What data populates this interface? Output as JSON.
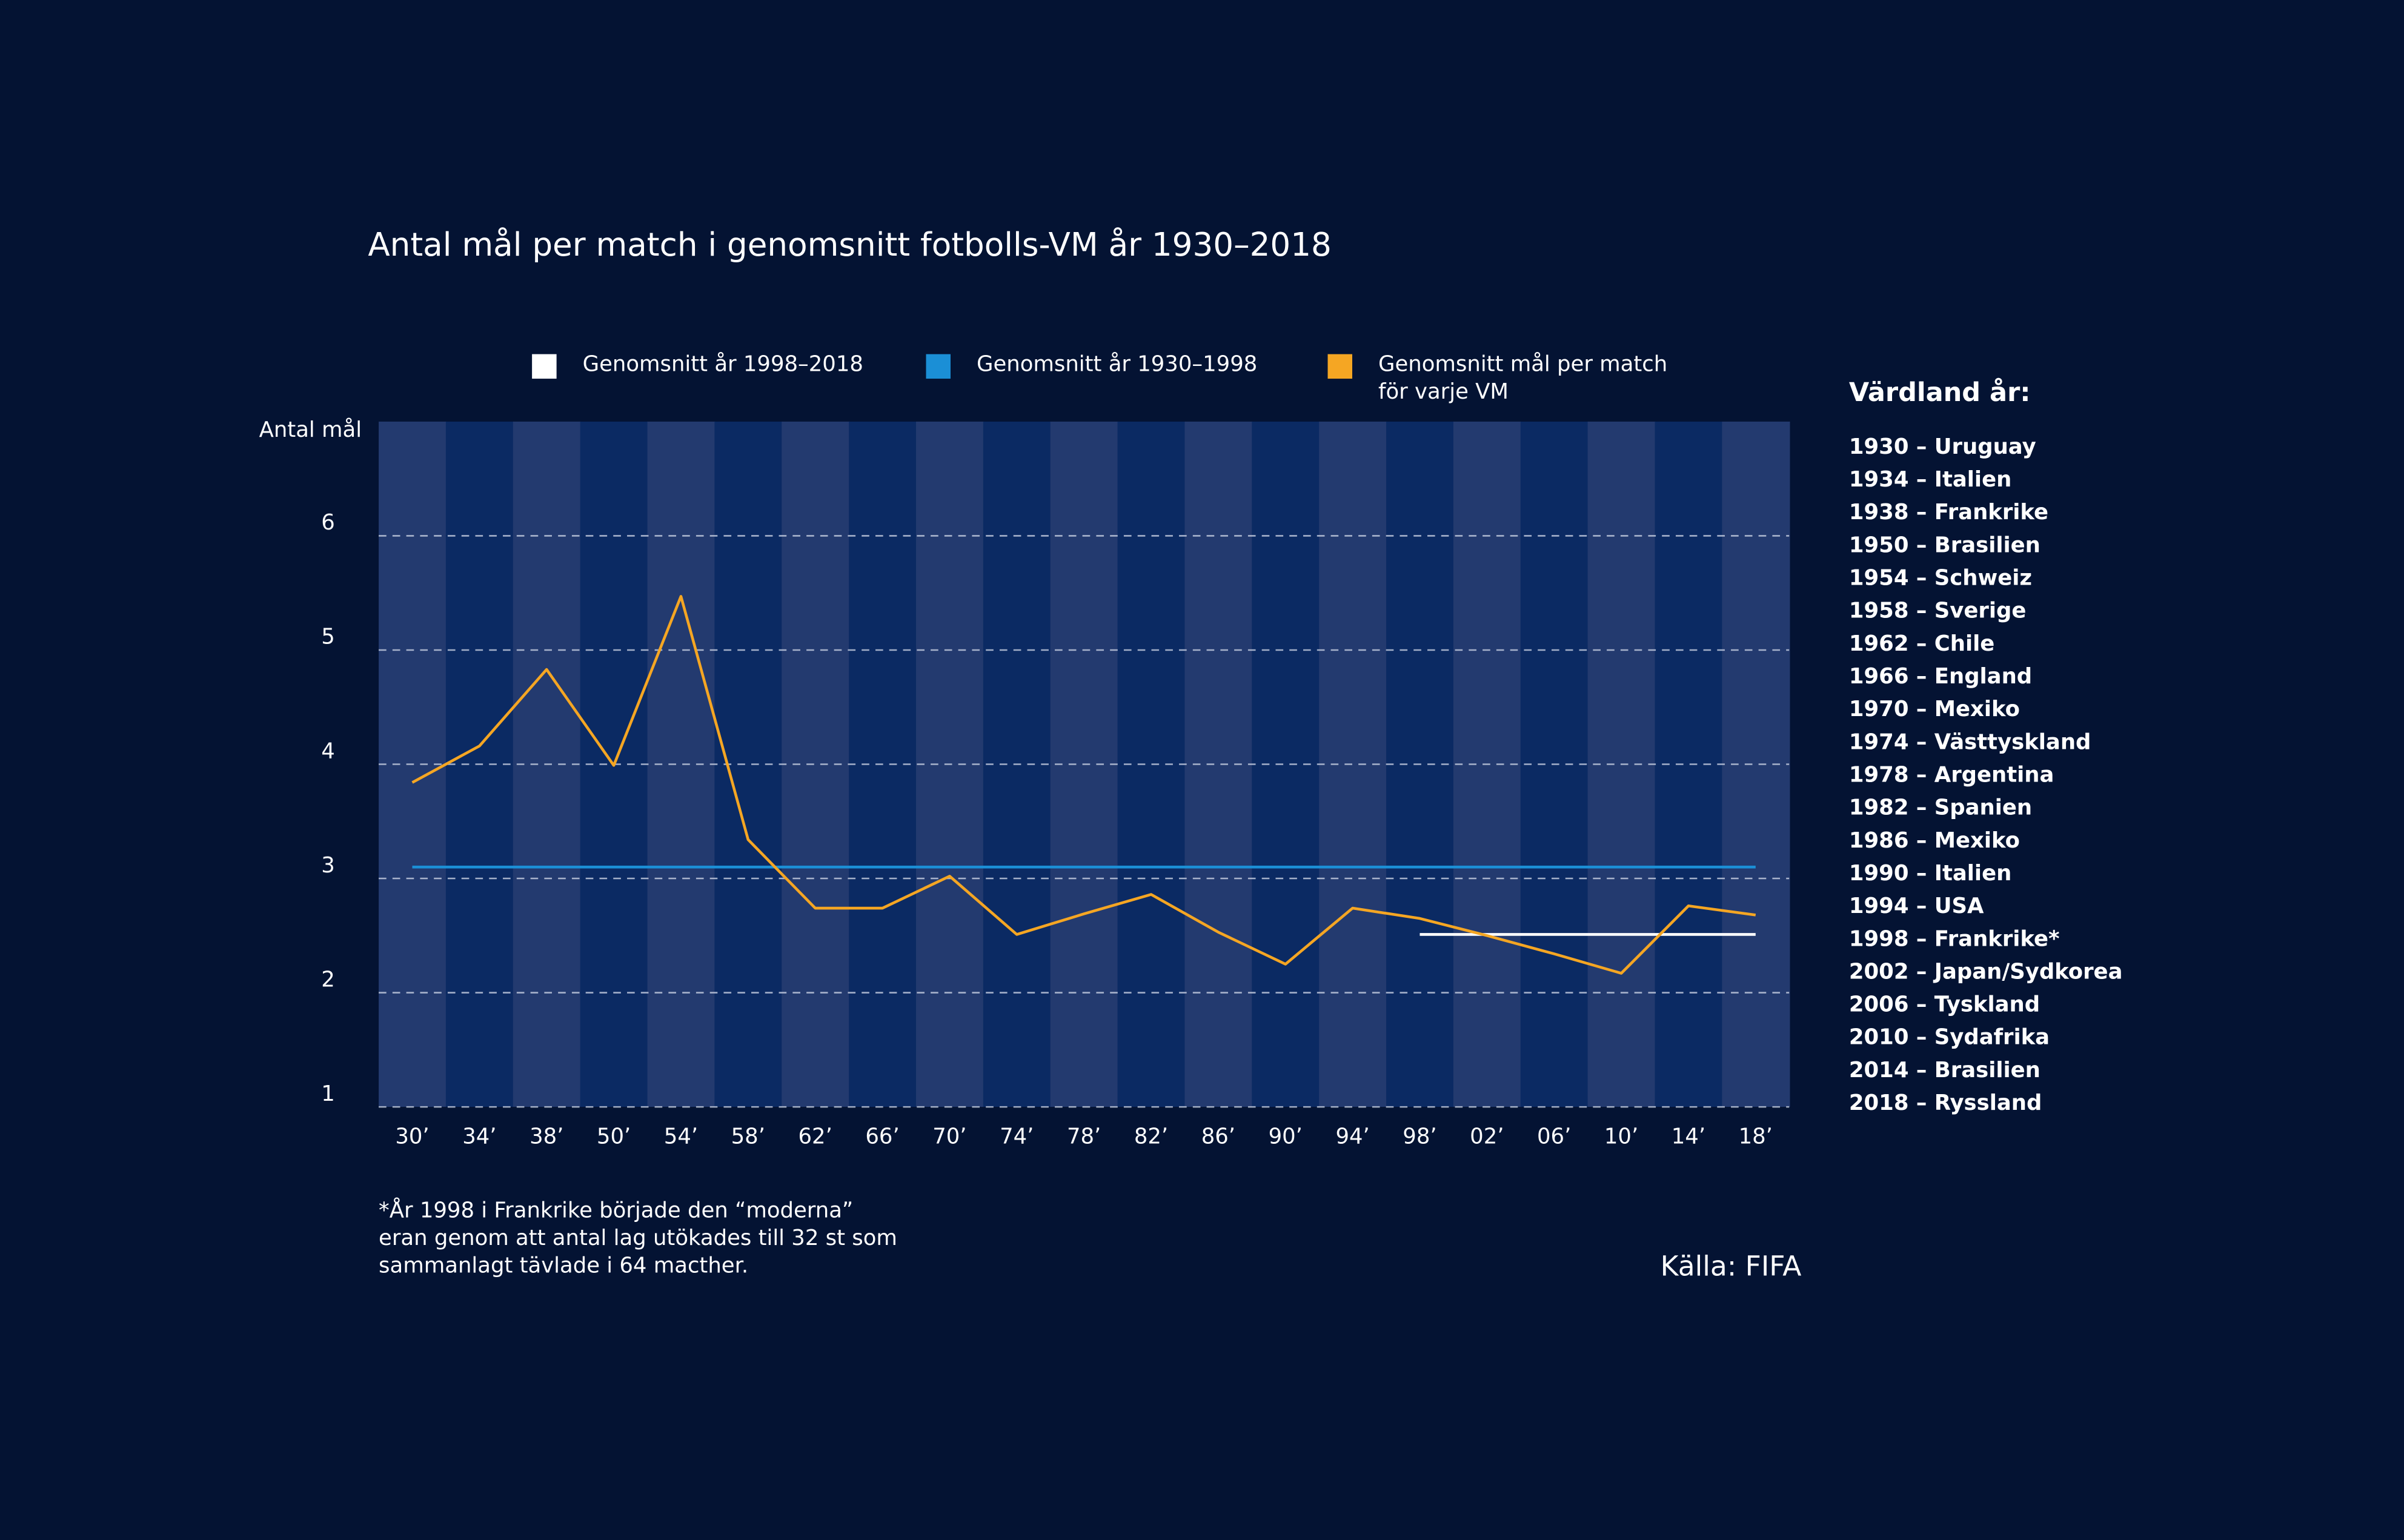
{
  "chart_data": {
    "type": "line",
    "title": "Antal mål per match i genomsnitt fotbolls-VM år 1930–2018",
    "y_label": "Antal mål",
    "categories": [
      "30’",
      "34’",
      "38’",
      "50’",
      "54’",
      "58’",
      "62’",
      "66’",
      "70’",
      "74’",
      "78’",
      "82’",
      "86’",
      "90’",
      "94’",
      "98’",
      "02’",
      "06’",
      "10’",
      "14’",
      "18’"
    ],
    "series": [
      {
        "name": "Genomsnitt år 1998–2018",
        "color": "#ffffff",
        "values": [
          null,
          null,
          null,
          null,
          null,
          null,
          null,
          null,
          null,
          null,
          null,
          null,
          null,
          null,
          null,
          2.51,
          2.51,
          2.51,
          2.51,
          2.51,
          2.51
        ]
      },
      {
        "name": "Genomsnitt  år 1930–1998",
        "color": "#1b8fd6",
        "values": [
          3.1,
          3.1,
          3.1,
          3.1,
          3.1,
          3.1,
          3.1,
          3.1,
          3.1,
          3.1,
          3.1,
          3.1,
          3.1,
          3.1,
          3.1,
          3.1,
          3.1,
          3.1,
          3.1,
          3.1,
          3.1
        ]
      },
      {
        "name": "Genomsnitt mål per match för varje VM",
        "color": "#f5a623",
        "values": [
          3.84,
          4.16,
          4.83,
          3.99,
          5.47,
          3.34,
          2.74,
          2.74,
          3.02,
          2.51,
          2.69,
          2.86,
          2.53,
          2.25,
          2.74,
          2.65,
          2.5,
          2.34,
          2.17,
          2.76,
          2.68
        ]
      }
    ],
    "ylim": [
      1,
      7
    ],
    "yticks": [
      1,
      2,
      3,
      4,
      5,
      6
    ],
    "grid": true,
    "hosts_title": "Värdland år:",
    "hosts": [
      "1930 – Uruguay",
      "1934 – Italien",
      "1938 – Frankrike",
      "1950 – Brasilien",
      "1954 – Schweiz",
      "1958 – Sverige",
      "1962 – Chile",
      "1966 – England",
      "1970 – Mexiko",
      "1974 – Västtyskland",
      "1978 – Argentina",
      "1982 – Spanien",
      "1986 – Mexiko",
      "1990 – Italien",
      "1994 – USA",
      "1998 – Frankrike*",
      "2002 – Japan/Sydkorea",
      "2006 – Tyskland",
      "2010 – Sydafrika",
      "2014 – Brasilien",
      "2018 – Ryssland"
    ],
    "note": "*År 1998 i Frankrike började den “moderna” eran genom att antal lag utökades till 32 st som sammanlagt tävlade i 64 macther.",
    "source": "Källa: FIFA"
  }
}
